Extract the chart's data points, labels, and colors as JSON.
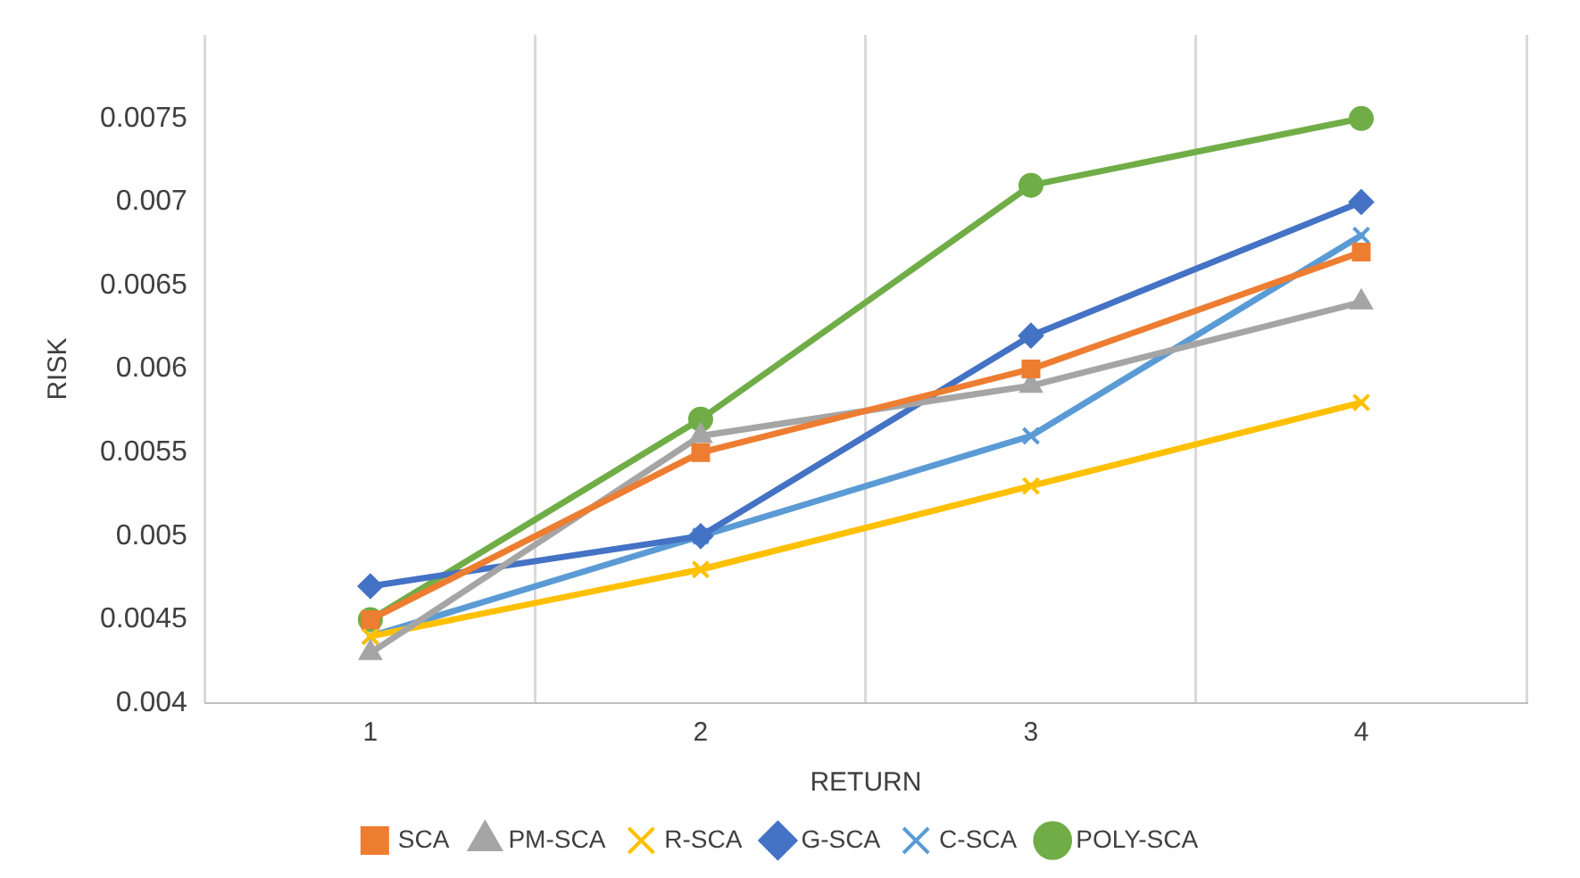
{
  "chart_data": {
    "type": "line",
    "xlabel": "RETURN",
    "ylabel": "RISK",
    "categories": [
      "1",
      "2",
      "3",
      "4"
    ],
    "ylim": [
      0.004,
      0.008
    ],
    "yticks": [
      0.004,
      0.0045,
      0.005,
      0.0055,
      0.006,
      0.0065,
      0.007,
      0.0075
    ],
    "grid": "x",
    "legend": "bottom",
    "line_style": "solid",
    "series": [
      {
        "name": "SCA",
        "color": "#ed7d31",
        "marker": "square",
        "values": [
          0.0045,
          0.0055,
          0.006,
          0.0067
        ]
      },
      {
        "name": "PM-SCA",
        "color": "#a5a5a5",
        "marker": "triangle",
        "values": [
          0.0043,
          0.0056,
          0.0059,
          0.0064
        ]
      },
      {
        "name": "R-SCA",
        "color": "#ffc000",
        "marker": "cross",
        "values": [
          0.0044,
          0.0048,
          0.0053,
          0.0058
        ]
      },
      {
        "name": "G-SCA",
        "color": "#4472c4",
        "marker": "diamond",
        "values": [
          0.0047,
          0.005,
          0.0062,
          0.007
        ]
      },
      {
        "name": "C-SCA",
        "color": "#5b9bd5",
        "marker": "cross",
        "values": [
          0.0044,
          0.005,
          0.0056,
          0.0068
        ]
      },
      {
        "name": "POLY-SCA",
        "color": "#70ad47",
        "marker": "circle",
        "values": [
          0.0045,
          0.0057,
          0.0071,
          0.0075
        ]
      }
    ]
  }
}
